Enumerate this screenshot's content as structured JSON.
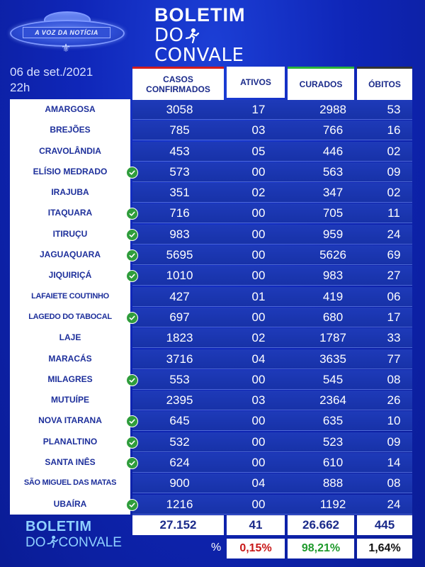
{
  "header": {
    "logo_text": "A VOZ DA NOTÍCIA",
    "title_top": "BOLETIM",
    "title_bottom_pre": "DO",
    "title_bottom_post": "CONVALE",
    "date": "06 de set./2021",
    "hour": "22h"
  },
  "columns": {
    "confirmed": "CASOS CONFIRMADOS",
    "active": "ATIVOS",
    "cured": "CURADOS",
    "deaths": "ÓBITOS"
  },
  "accent_colors": {
    "confirmed": "#d21c1c",
    "cured": "#2bb33a",
    "deaths": "#333333"
  },
  "rows": [
    {
      "city": "AMARGOSA",
      "checked": false,
      "confirmed": "3058",
      "active": "17",
      "cured": "2988",
      "deaths": "53"
    },
    {
      "city": "BREJÕES",
      "checked": false,
      "confirmed": "785",
      "active": "03",
      "cured": "766",
      "deaths": "16"
    },
    {
      "city": "CRAVOLÂNDIA",
      "checked": false,
      "confirmed": "453",
      "active": "05",
      "cured": "446",
      "deaths": "02"
    },
    {
      "city": "ELÍSIO MEDRADO",
      "checked": true,
      "confirmed": "573",
      "active": "00",
      "cured": "563",
      "deaths": "09"
    },
    {
      "city": "IRAJUBA",
      "checked": false,
      "confirmed": "351",
      "active": "02",
      "cured": "347",
      "deaths": "02"
    },
    {
      "city": "ITAQUARA",
      "checked": true,
      "confirmed": "716",
      "active": "00",
      "cured": "705",
      "deaths": "11"
    },
    {
      "city": "ITIRUÇU",
      "checked": true,
      "confirmed": "983",
      "active": "00",
      "cured": "959",
      "deaths": "24"
    },
    {
      "city": "JAGUAQUARA",
      "checked": true,
      "confirmed": "5695",
      "active": "00",
      "cured": "5626",
      "deaths": "69"
    },
    {
      "city": "JIQUIRIÇÁ",
      "checked": true,
      "confirmed": "1010",
      "active": "00",
      "cured": "983",
      "deaths": "27"
    },
    {
      "city": "LAFAIETE COUTINHO",
      "checked": false,
      "confirmed": "427",
      "active": "01",
      "cured": "419",
      "deaths": "06"
    },
    {
      "city": "LAGEDO DO TABOCAL",
      "checked": true,
      "confirmed": "697",
      "active": "00",
      "cured": "680",
      "deaths": "17"
    },
    {
      "city": "LAJE",
      "checked": false,
      "confirmed": "1823",
      "active": "02",
      "cured": "1787",
      "deaths": "33"
    },
    {
      "city": "MARACÁS",
      "checked": false,
      "confirmed": "3716",
      "active": "04",
      "cured": "3635",
      "deaths": "77"
    },
    {
      "city": "MILAGRES",
      "checked": true,
      "confirmed": "553",
      "active": "00",
      "cured": "545",
      "deaths": "08"
    },
    {
      "city": "MUTUÍPE",
      "checked": false,
      "confirmed": "2395",
      "active": "03",
      "cured": "2364",
      "deaths": "26"
    },
    {
      "city": "NOVA ITARANA",
      "checked": true,
      "confirmed": "645",
      "active": "00",
      "cured": "635",
      "deaths": "10"
    },
    {
      "city": "PLANALTINO",
      "checked": true,
      "confirmed": "532",
      "active": "00",
      "cured": "523",
      "deaths": "09"
    },
    {
      "city": "SANTA INÊS",
      "checked": true,
      "confirmed": "624",
      "active": "00",
      "cured": "610",
      "deaths": "14"
    },
    {
      "city": "SÃO MIGUEL DAS MATAS",
      "checked": false,
      "confirmed": "900",
      "active": "04",
      "cured": "888",
      "deaths": "08"
    },
    {
      "city": "UBAÍRA",
      "checked": true,
      "confirmed": "1216",
      "active": "00",
      "cured": "1192",
      "deaths": "24"
    }
  ],
  "totals": {
    "confirmed": "27.152",
    "active": "41",
    "cured": "26.662",
    "deaths": "445"
  },
  "percent": {
    "label": "%",
    "active": "0,15%",
    "cured": "98,21%",
    "deaths": "1,64%",
    "active_color": "#c81818",
    "cured_color": "#1f9a2c",
    "deaths_color": "#111111"
  },
  "footer": {
    "title_top": "BOLETIM",
    "title_bottom_pre": "DO",
    "title_bottom_post": "CONVALE"
  }
}
